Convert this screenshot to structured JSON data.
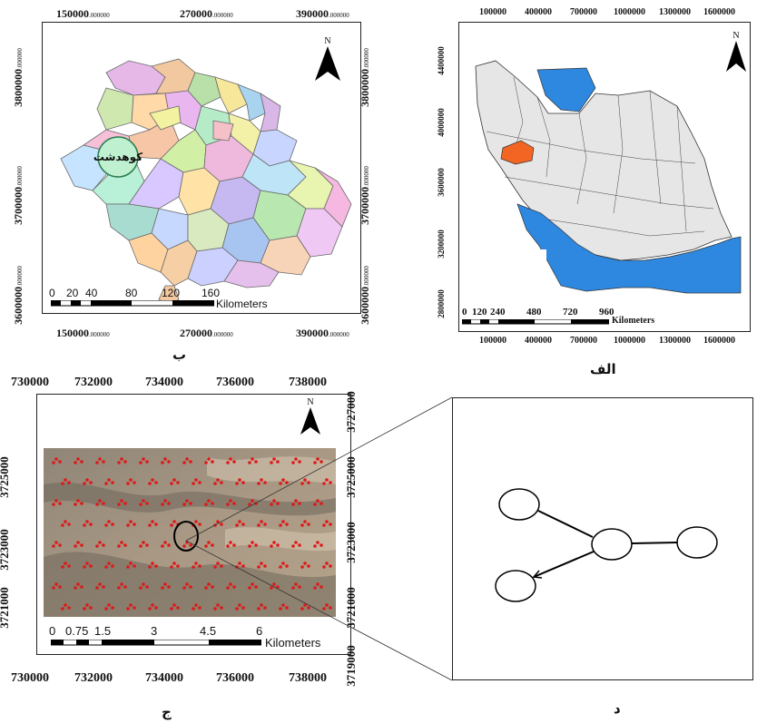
{
  "panels": {
    "alef": {
      "caption": "الف",
      "top_ticks": [
        "100000",
        "400000",
        "700000",
        "1000000",
        "1300000",
        "1600000"
      ],
      "bottom_ticks": [
        "100000",
        "400000",
        "700000",
        "1000000",
        "1300000",
        "1600000"
      ],
      "left_ticks": [
        "4400000",
        "4000000",
        "3600000",
        "3200000",
        "2800000"
      ],
      "scale_labels": [
        "0",
        "120",
        "240",
        "480",
        "720",
        "960"
      ],
      "scale_unit": "Kilometers",
      "north": "N",
      "colors": {
        "land": "#e6e6e6",
        "water": "#2e88e0",
        "highlight": "#f26522"
      }
    },
    "be": {
      "caption": "ب",
      "top_ticks": [
        {
          "main": "150000",
          "dec": ".000000"
        },
        {
          "main": "270000",
          "dec": ".000000"
        },
        {
          "main": "390000",
          "dec": ".000000"
        }
      ],
      "bottom_ticks": [
        {
          "main": "150000",
          "dec": ".000000"
        },
        {
          "main": "270000",
          "dec": ".000000"
        },
        {
          "main": "390000",
          "dec": ".000000"
        }
      ],
      "left_ticks": [
        {
          "main": "3800000",
          "dec": ".000000"
        },
        {
          "main": "3700000",
          "dec": ".000000"
        },
        {
          "main": "3600000",
          "dec": ".000000"
        }
      ],
      "right_ticks": [
        {
          "main": "3800000",
          "dec": ".000000"
        },
        {
          "main": "3700000",
          "dec": ".000000"
        },
        {
          "main": "3600000",
          "dec": ".000000"
        }
      ],
      "highlight_label": "کوهدشت",
      "scale_labels": [
        "0",
        "20",
        "40",
        "80",
        "120",
        "160"
      ],
      "scale_unit": "Kilometers",
      "north": "N"
    },
    "jim": {
      "caption": "ج",
      "top_ticks": [
        "730000",
        "732000",
        "734000",
        "736000",
        "738000"
      ],
      "bottom_ticks": [
        "730000",
        "732000",
        "734000",
        "736000",
        "738000"
      ],
      "left_ticks": [
        "3725000",
        "3723000",
        "3721000"
      ],
      "right_ticks": [
        "3727000",
        "3725000",
        "3723000",
        "3721000",
        "3719000"
      ],
      "scale_labels": [
        "0",
        "0.75",
        "1.5",
        "3",
        "4.5",
        "6"
      ],
      "scale_unit": "Kilometers",
      "north": "N"
    },
    "dal": {
      "caption": "د"
    }
  }
}
